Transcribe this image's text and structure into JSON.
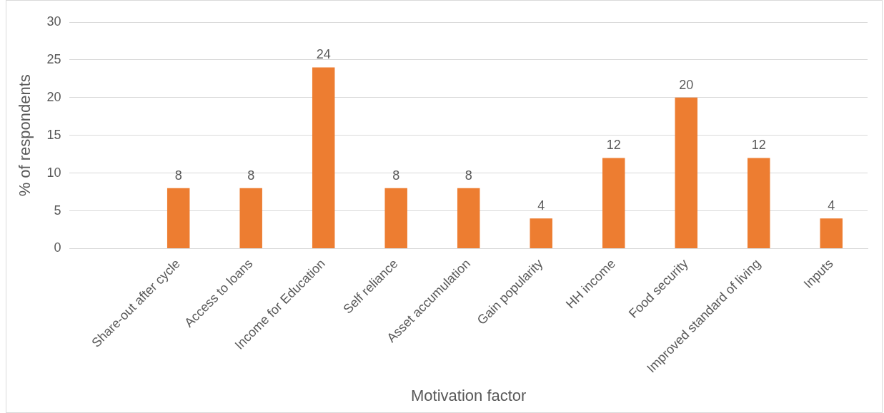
{
  "chart_data": {
    "type": "bar",
    "xlabel": "Motivation factor",
    "ylabel": "% of respondents",
    "categories": [
      null,
      "Share-out after cycle",
      "Access to loans",
      "Income for Education",
      "Self reliance",
      "Asset accumulation",
      "Gain popularity",
      "HH income",
      "Food security",
      "Improved standard of living",
      "Inputs"
    ],
    "values": [
      null,
      8,
      8,
      24,
      8,
      8,
      4,
      12,
      20,
      12,
      4
    ],
    "color": "#ed7d31",
    "ylim": [
      0,
      30
    ],
    "yticks": [
      0,
      5,
      10,
      15,
      20,
      25,
      30
    ],
    "grid": "y",
    "data_labels": true,
    "legend": false
  }
}
